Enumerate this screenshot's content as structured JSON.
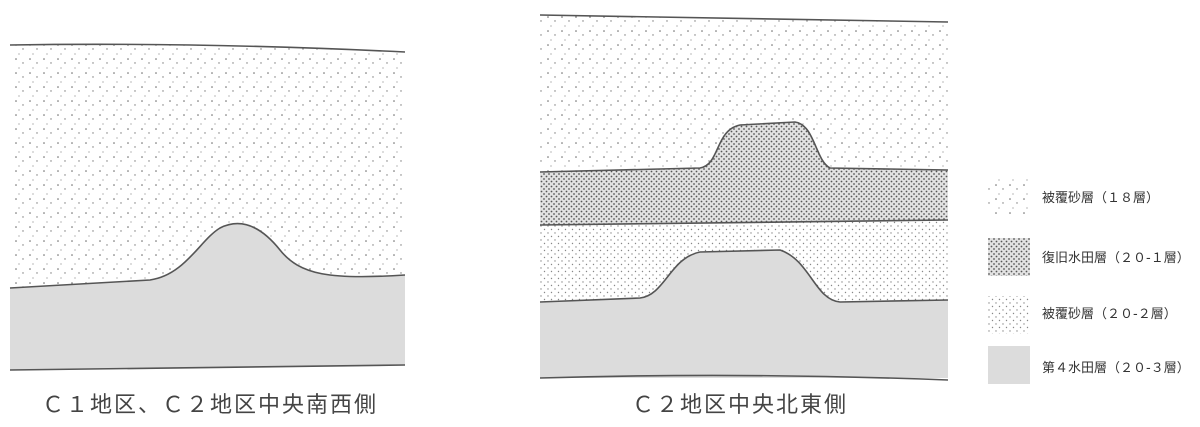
{
  "panels": [
    {
      "caption": "Ｃ１地区、Ｃ２地区中央南西側"
    },
    {
      "caption": "Ｃ２地区中央北東側"
    }
  ],
  "legend": [
    {
      "label": "被覆砂層（１８層）"
    },
    {
      "label": "復旧水田層（２０-１層）"
    },
    {
      "label": "被覆砂層（２０-２層）"
    },
    {
      "label": "第４水田層（２０-３層）"
    }
  ]
}
